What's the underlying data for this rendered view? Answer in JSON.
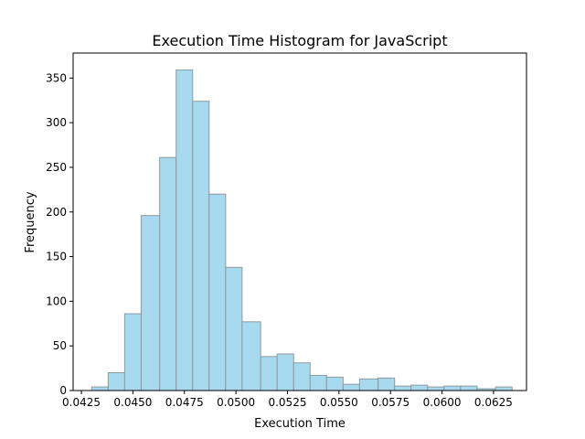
{
  "chart_data": {
    "type": "bar",
    "title": "Execution Time Histogram for JavaScript",
    "xlabel": "Execution Time",
    "ylabel": "Frequency",
    "xlim": [
      0.0421,
      0.0641
    ],
    "ylim": [
      0,
      378
    ],
    "xticks": [
      0.0425,
      0.045,
      0.0475,
      0.05,
      0.0525,
      0.055,
      0.0575,
      0.06,
      0.0625
    ],
    "xtick_labels": [
      "0.0425",
      "0.0450",
      "0.0475",
      "0.0500",
      "0.0525",
      "0.0550",
      "0.0575",
      "0.0600",
      "0.0625"
    ],
    "yticks": [
      0,
      50,
      100,
      150,
      200,
      250,
      300,
      350
    ],
    "yticks_labels": [
      "0",
      "50",
      "100",
      "150",
      "200",
      "250",
      "300",
      "350"
    ],
    "bin_edges": [
      0.043,
      0.0438,
      0.0446,
      0.0454,
      0.0463,
      0.0471,
      0.0479,
      0.0487,
      0.0495,
      0.0503,
      0.0512,
      0.052,
      0.0528,
      0.0536,
      0.0544,
      0.0552,
      0.056,
      0.0569,
      0.0577,
      0.0585,
      0.0593,
      0.0601,
      0.0609,
      0.0617,
      0.0626,
      0.0634
    ],
    "values": [
      4,
      20,
      86,
      196,
      261,
      359,
      324,
      220,
      138,
      77,
      38,
      41,
      31,
      17,
      15,
      7,
      13,
      14,
      5,
      6,
      4,
      5,
      5,
      2,
      4
    ],
    "bar_color": "#a8daef",
    "edge_color": "#8c9a9f",
    "grid": false
  }
}
